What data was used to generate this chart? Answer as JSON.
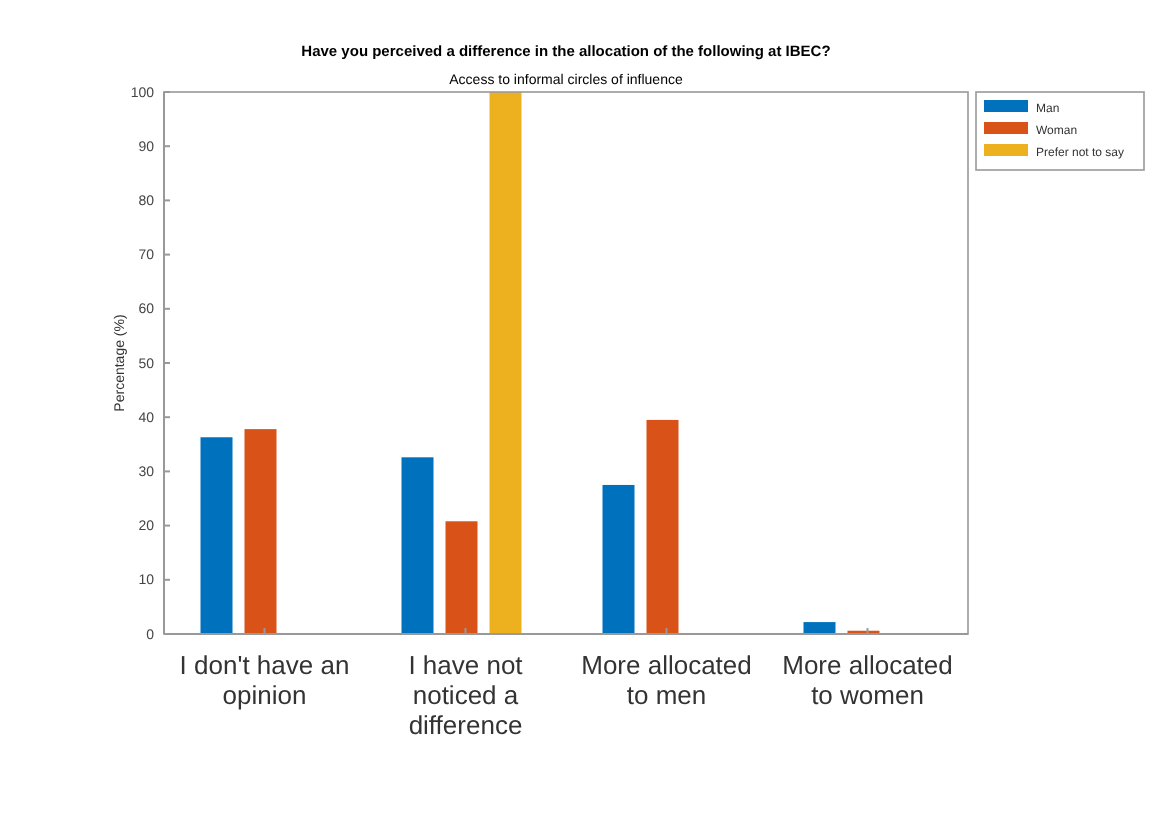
{
  "chart_data": {
    "type": "bar",
    "title": "Have you perceived a difference in the allocation of the following at IBEC?",
    "subtitle": "Access to informal circles of influence",
    "ylabel": "Percentage (%)",
    "categories": [
      "I don't have an opinion",
      "I have not noticed a difference",
      "More allocated to men",
      "More allocated to women"
    ],
    "series": [
      {
        "name": "Man",
        "color": "#0072bd",
        "values": [
          36.3,
          32.6,
          27.5,
          2.2
        ]
      },
      {
        "name": "Woman",
        "color": "#d95319",
        "values": [
          37.8,
          20.8,
          39.5,
          0.6
        ]
      },
      {
        "name": "Prefer not to say",
        "color": "#edb120",
        "values": [
          0,
          100,
          0,
          0
        ]
      }
    ],
    "ylim": [
      0,
      100
    ],
    "yticks": [
      0,
      10,
      20,
      30,
      40,
      50,
      60,
      70,
      80,
      90,
      100
    ],
    "legend": "top right",
    "grid": false
  }
}
